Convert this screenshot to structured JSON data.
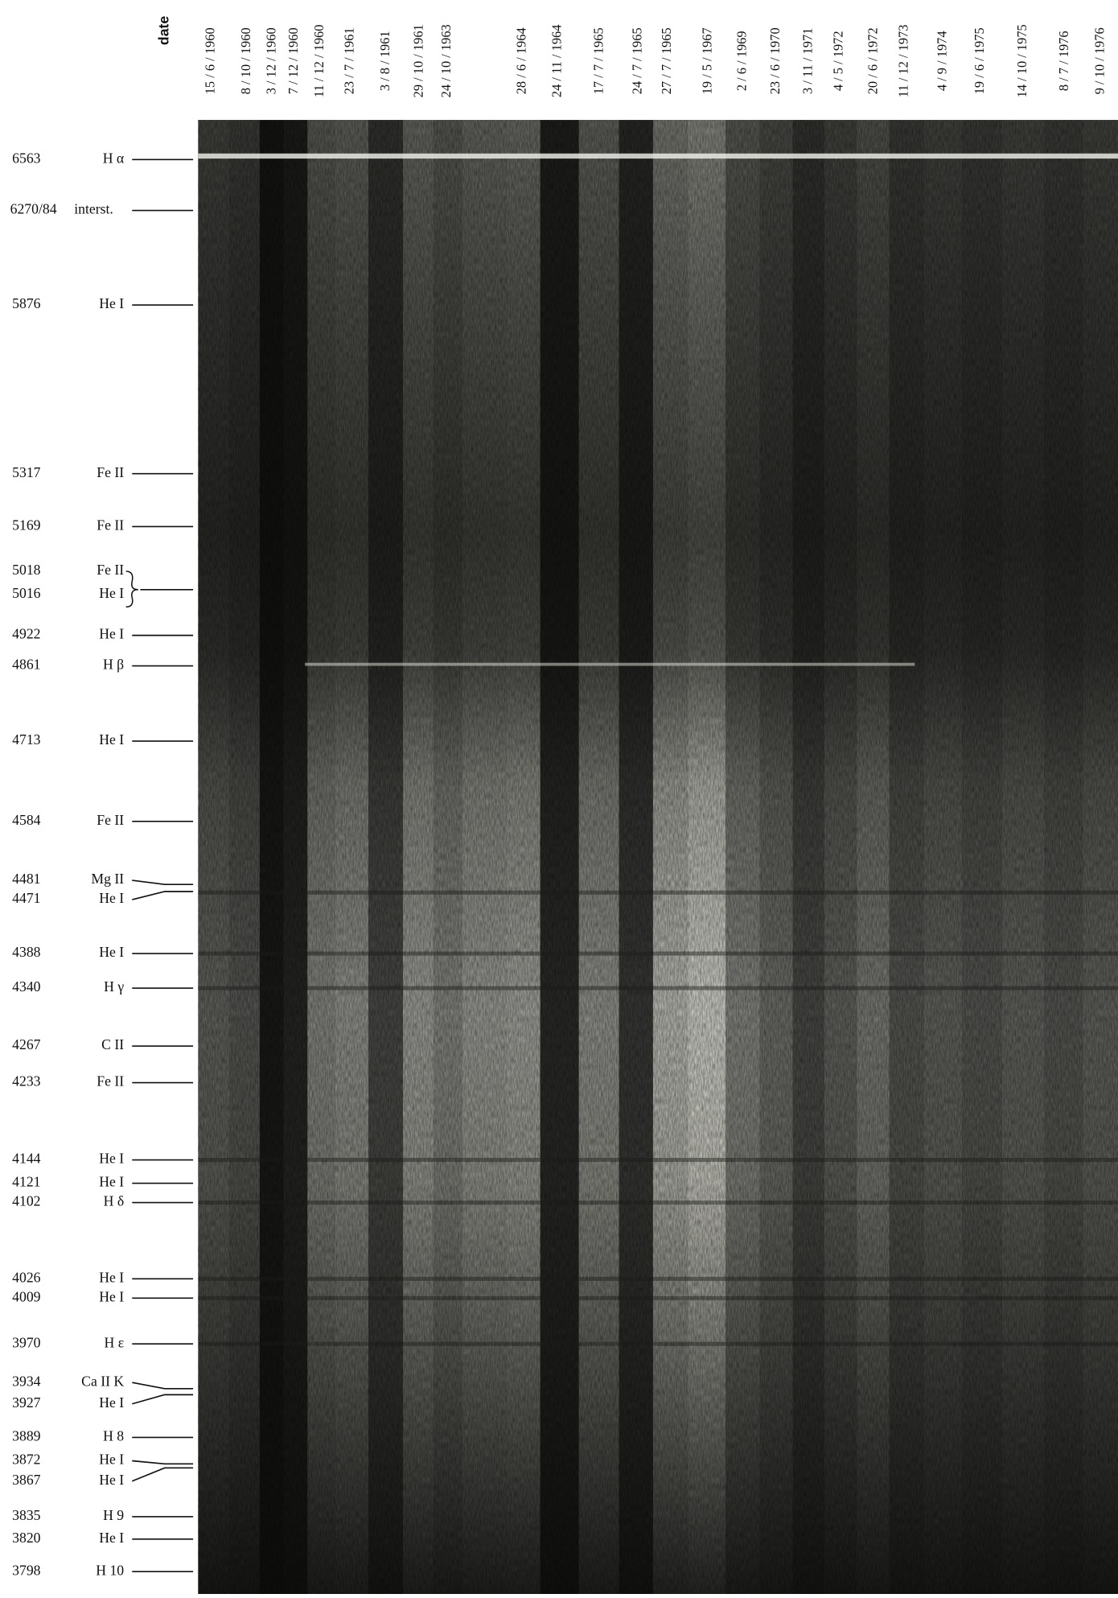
{
  "header": {
    "column_label": "date"
  },
  "dates": [
    "15 / 6 / 1960",
    "8 / 10 / 1960",
    "3 / 12 / 1960",
    "7 / 12 / 1960",
    "11 / 12 / 1960",
    "23 / 7 / 1961",
    "3 / 8 / 1961",
    "29 / 10 / 1961",
    "24 / 10 / 1963",
    "28 / 6 / 1964",
    "24 / 11 / 1964",
    "17 / 7 / 1965",
    "24 / 7 / 1965",
    "27 / 7 / 1965",
    "19 / 5 / 1967",
    "2 / 6 / 1969",
    "23 / 6 / 1970",
    "3 / 11 / 1971",
    "4 / 5 / 1972",
    "20 / 6 / 1972",
    "11 / 12 / 1973",
    "4 / 9 / 1974",
    "19 / 6 / 1975",
    "14 / 10 / 1975",
    "8 / 7 / 1976",
    "9 / 10 / 1976"
  ],
  "lines": [
    {
      "wavelength": "6563",
      "ion": "H α"
    },
    {
      "wavelength": "6270/84",
      "ion": "interst."
    },
    {
      "wavelength": "5876",
      "ion": "He I"
    },
    {
      "wavelength": "5317",
      "ion": "Fe II"
    },
    {
      "wavelength": "5169",
      "ion": "Fe II"
    },
    {
      "wavelength": "5018",
      "ion": "Fe II"
    },
    {
      "wavelength": "5016",
      "ion": "He I"
    },
    {
      "wavelength": "4922",
      "ion": "He I"
    },
    {
      "wavelength": "4861",
      "ion": "H β"
    },
    {
      "wavelength": "4713",
      "ion": "He I"
    },
    {
      "wavelength": "4584",
      "ion": "Fe II"
    },
    {
      "wavelength": "4481",
      "ion": "Mg II"
    },
    {
      "wavelength": "4471",
      "ion": "He I"
    },
    {
      "wavelength": "4388",
      "ion": "He I"
    },
    {
      "wavelength": "4340",
      "ion": "H γ"
    },
    {
      "wavelength": "4267",
      "ion": "C II"
    },
    {
      "wavelength": "4233",
      "ion": "Fe II"
    },
    {
      "wavelength": "4144",
      "ion": "He I"
    },
    {
      "wavelength": "4121",
      "ion": "He I"
    },
    {
      "wavelength": "4102",
      "ion": "H δ"
    },
    {
      "wavelength": "4026",
      "ion": "He I"
    },
    {
      "wavelength": "4009",
      "ion": "He I"
    },
    {
      "wavelength": "3970",
      "ion": "H ε"
    },
    {
      "wavelength": "3934",
      "ion": "Ca II K"
    },
    {
      "wavelength": "3927",
      "ion": "He I"
    },
    {
      "wavelength": "3889",
      "ion": "H 8"
    },
    {
      "wavelength": "3872",
      "ion": "He I"
    },
    {
      "wavelength": "3867",
      "ion": "He I"
    },
    {
      "wavelength": "3835",
      "ion": "H 9"
    },
    {
      "wavelength": "3820",
      "ion": "He I"
    },
    {
      "wavelength": "3798",
      "ion": "H 10"
    }
  ]
}
